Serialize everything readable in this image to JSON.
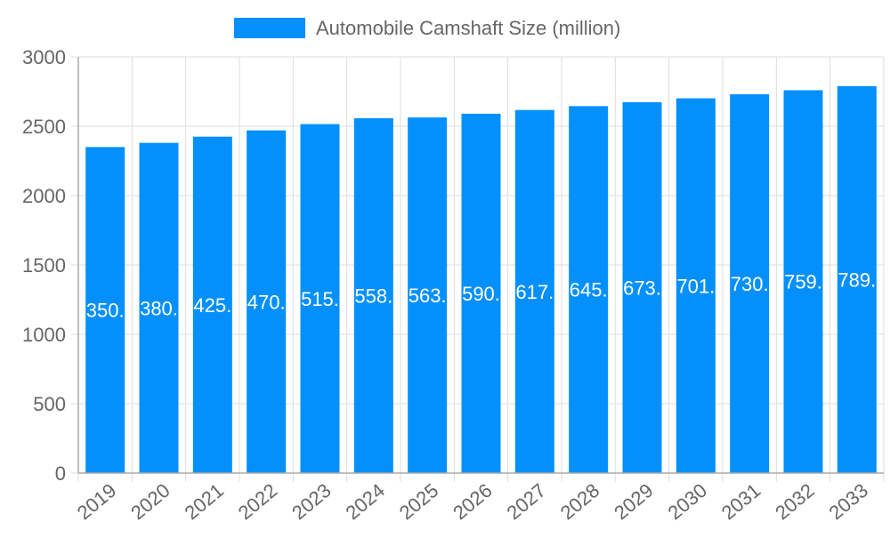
{
  "chart_data": {
    "type": "bar",
    "categories": [
      "2019",
      "2020",
      "2021",
      "2022",
      "2023",
      "2024",
      "2025",
      "2026",
      "2027",
      "2028",
      "2029",
      "2030",
      "2031",
      "2032",
      "2033"
    ],
    "series": [
      {
        "name": "Automobile Camshaft Size (million)",
        "values": [
          2350.2,
          2380.4,
          2425.1,
          2470.3,
          2515.6,
          2558.2,
          2563.7,
          2590.4,
          2617.5,
          2645.3,
          2673.2,
          2701.5,
          2730.6,
          2759.8,
          2789.5
        ]
      }
    ],
    "ylim": [
      0,
      3000
    ],
    "yticks": [
      0,
      500,
      1000,
      1500,
      2000,
      2500,
      3000
    ],
    "grid": true,
    "legend": "top",
    "bar_color": "#0390fc",
    "data_labels": true
  }
}
